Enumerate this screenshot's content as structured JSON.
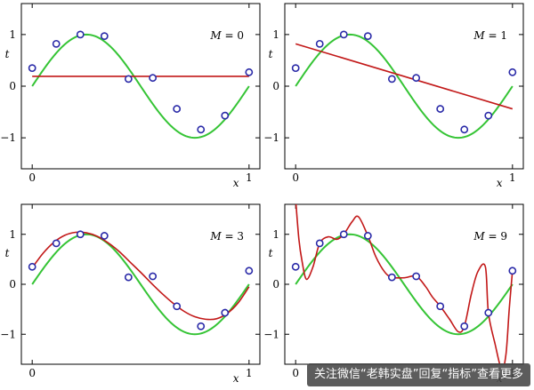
{
  "chart_data": [
    {
      "type": "line",
      "annotation": "M = 0",
      "xlabel": "x",
      "ylabel": "t",
      "xlim": [
        -0.05,
        1.05
      ],
      "ylim": [
        -1.6,
        1.6
      ],
      "xticks": [
        "0",
        "1"
      ],
      "yticks": [
        "1",
        "0",
        "−1"
      ],
      "grid": false,
      "points": {
        "x": [
          0.0,
          0.111,
          0.222,
          0.333,
          0.444,
          0.556,
          0.667,
          0.778,
          0.889,
          1.0
        ],
        "y": [
          0.35,
          0.82,
          1.0,
          0.97,
          0.14,
          0.16,
          -0.44,
          -0.84,
          -0.57,
          0.27
        ],
        "color": "#2a2aa8"
      },
      "true_curve": {
        "function": "sin(2*pi*x)",
        "color": "#35c435"
      },
      "fit": {
        "x": [
          0.0,
          1.0
        ],
        "y": [
          0.19,
          0.19
        ],
        "color": "#c21818"
      }
    },
    {
      "type": "line",
      "annotation": "M = 1",
      "xlabel": "x",
      "ylabel": "t",
      "xlim": [
        -0.05,
        1.05
      ],
      "ylim": [
        -1.6,
        1.6
      ],
      "xticks": [
        "0",
        "1"
      ],
      "yticks": [
        "1",
        "0",
        "−1"
      ],
      "grid": false,
      "points": {
        "x": [
          0.0,
          0.111,
          0.222,
          0.333,
          0.444,
          0.556,
          0.667,
          0.778,
          0.889,
          1.0
        ],
        "y": [
          0.35,
          0.82,
          1.0,
          0.97,
          0.14,
          0.16,
          -0.44,
          -0.84,
          -0.57,
          0.27
        ],
        "color": "#2a2aa8"
      },
      "true_curve": {
        "function": "sin(2*pi*x)",
        "color": "#35c435"
      },
      "fit": {
        "x": [
          0.0,
          1.0
        ],
        "y": [
          0.82,
          -0.44
        ],
        "color": "#c21818"
      }
    },
    {
      "type": "line",
      "annotation": "M = 3",
      "xlabel": "x",
      "ylabel": "t",
      "xlim": [
        -0.05,
        1.05
      ],
      "ylim": [
        -1.6,
        1.6
      ],
      "xticks": [
        "0",
        "1"
      ],
      "yticks": [
        "1",
        "0",
        "−1"
      ],
      "grid": false,
      "points": {
        "x": [
          0.0,
          0.111,
          0.222,
          0.333,
          0.444,
          0.556,
          0.667,
          0.778,
          0.889,
          1.0
        ],
        "y": [
          0.35,
          0.82,
          1.0,
          0.97,
          0.14,
          0.16,
          -0.44,
          -0.84,
          -0.57,
          0.27
        ],
        "color": "#2a2aa8"
      },
      "true_curve": {
        "function": "sin(2*pi*x)",
        "color": "#35c435"
      },
      "fit": {
        "x": [
          0.0,
          0.05,
          0.1,
          0.15,
          0.2,
          0.25,
          0.3,
          0.35,
          0.4,
          0.45,
          0.5,
          0.55,
          0.6,
          0.65,
          0.7,
          0.75,
          0.8,
          0.85,
          0.9,
          0.95,
          1.0
        ],
        "y": [
          0.33,
          0.62,
          0.84,
          0.98,
          1.04,
          1.03,
          0.96,
          0.83,
          0.66,
          0.45,
          0.24,
          0.02,
          -0.19,
          -0.38,
          -0.54,
          -0.65,
          -0.7,
          -0.69,
          -0.58,
          -0.37,
          -0.05
        ],
        "color": "#c21818"
      }
    },
    {
      "type": "line",
      "annotation": "M = 9",
      "xlabel": "x",
      "ylabel": "t",
      "xlim": [
        -0.05,
        1.05
      ],
      "ylim": [
        -1.6,
        1.6
      ],
      "xticks": [
        "0",
        "1"
      ],
      "yticks": [
        "1",
        "0",
        "−1"
      ],
      "grid": false,
      "points": {
        "x": [
          0.0,
          0.111,
          0.222,
          0.333,
          0.444,
          0.556,
          0.667,
          0.778,
          0.889,
          1.0
        ],
        "y": [
          0.35,
          0.82,
          1.0,
          0.97,
          0.14,
          0.16,
          -0.44,
          -0.84,
          -0.57,
          0.27
        ],
        "color": "#2a2aa8"
      },
      "true_curve": {
        "function": "sin(2*pi*x)",
        "color": "#35c435"
      },
      "fit": {
        "x": [
          0.0,
          0.015,
          0.03,
          0.05,
          0.08,
          0.111,
          0.15,
          0.19,
          0.222,
          0.26,
          0.29,
          0.333,
          0.37,
          0.41,
          0.444,
          0.5,
          0.556,
          0.6,
          0.63,
          0.667,
          0.71,
          0.75,
          0.778,
          0.81,
          0.84,
          0.875,
          0.889,
          0.92,
          0.95,
          0.97,
          0.985,
          1.0
        ],
        "y": [
          1.7,
          0.9,
          0.45,
          0.1,
          0.35,
          0.82,
          0.95,
          0.9,
          1.0,
          1.25,
          1.35,
          0.97,
          0.55,
          0.25,
          0.14,
          0.13,
          0.16,
          -0.05,
          -0.25,
          -0.44,
          -0.7,
          -0.95,
          -0.84,
          -0.2,
          0.25,
          0.35,
          -0.57,
          -1.2,
          -1.7,
          -1.4,
          -0.5,
          0.27
        ],
        "color": "#c21818"
      }
    }
  ],
  "watermark": "关注微信“老韩实盘”回复“指标”查看更多"
}
